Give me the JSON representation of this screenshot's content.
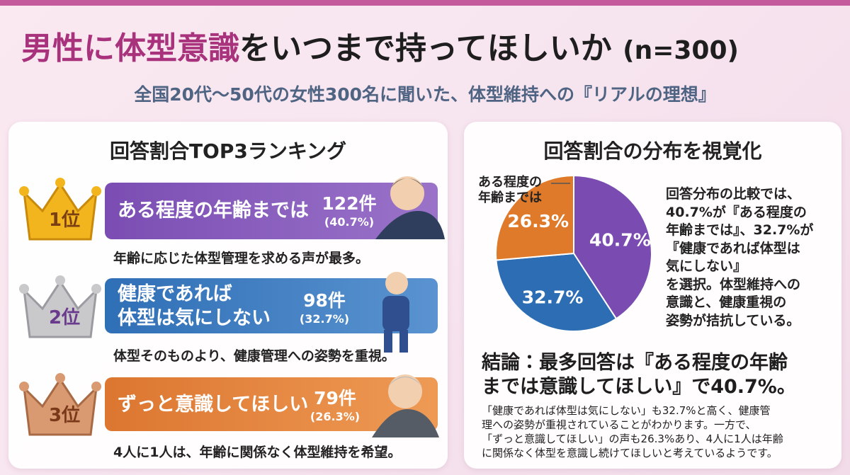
{
  "header": {
    "title_accent": "男性に体型意識",
    "title_main": "をいつまで持ってほしいか",
    "title_n": "(n=300)",
    "subtitle": "全国20代〜50代の女性300名に聞いた、体型維持への『リアルの理想』"
  },
  "ranking": {
    "title": "回答割合TOP3ランキング",
    "items": [
      {
        "rank": "1位",
        "label": "ある程度の年齢までは",
        "count": "122件",
        "percent": "(40.7%)",
        "note": "年齢に応じた体型管理を求める声が最多。"
      },
      {
        "rank": "2位",
        "label": "健康であれば\n体型は気にしない",
        "count": "98件",
        "percent": "(32.7%)",
        "note": "体型そのものより、健康管理への姿勢を重視。"
      },
      {
        "rank": "3位",
        "label": "ずっと意識してほしい",
        "count": "79件",
        "percent": "(26.3%)",
        "note": "4人に1人は、年齢に関係なく体型維持を希望。"
      }
    ]
  },
  "chart_data": {
    "type": "pie",
    "title": "回答割合の分布を視覚化",
    "values": [
      40.7,
      32.7,
      26.3
    ],
    "value_labels": [
      "40.7%",
      "32.7%",
      "26.3%"
    ],
    "colors": [
      "#7a4bb0",
      "#2c6db3",
      "#df7a2b"
    ],
    "annotation": "ある程度の\n年齢までは"
  },
  "description": "回答分布の比較では、\n40.7%が『ある程度の\n年齢までは』、32.7%が\n『健康であれば体型は\n気にしない』\nを選択。体型維持への\n意識と、健康重視の\n姿勢が拮抗している。",
  "conclusion": {
    "title": "結論：最多回答は『ある程度の年齢\nまでは意識してほしい』で40.7%。",
    "body": "「健康であれば体型は気にしない」も32.7%と高く、健康管\n理への姿勢が重視されていることがわかります。一方で、\n「ずっと意識してほしい」の声も26.3%あり、4人に1人は年齢\nに関係なく体型を意識し続けてほしいと考えているようです。"
  }
}
